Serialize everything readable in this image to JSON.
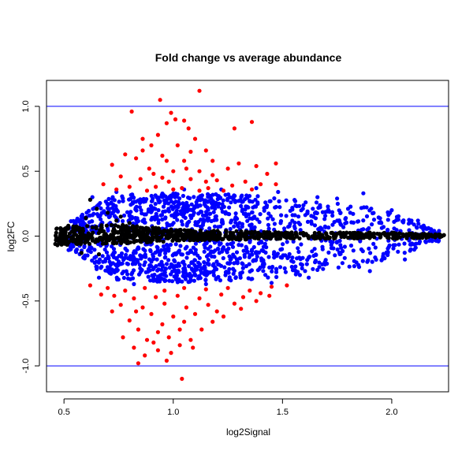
{
  "chart_data": {
    "type": "scatter",
    "title": "Fold change vs average abundance",
    "xlabel": "log2Signal",
    "ylabel": "log2FC",
    "xlim": [
      0.42,
      2.26
    ],
    "ylim": [
      -1.2,
      1.2
    ],
    "x_ticks": [
      0.5,
      1.0,
      1.5,
      2.0
    ],
    "x_tick_labels": [
      "0.5",
      "1.0",
      "1.5",
      "2.0"
    ],
    "y_ticks": [
      -1.0,
      -0.5,
      0.0,
      0.5,
      1.0
    ],
    "y_tick_labels": [
      "-1.0",
      "-0.5",
      "0.0",
      "0.5",
      "1.0"
    ],
    "reference_lines": [
      {
        "axis": "y",
        "value": 1.0,
        "color": "#0000ff"
      },
      {
        "axis": "y",
        "value": -1.0,
        "color": "#0000ff"
      }
    ],
    "grid": false,
    "series_colors": {
      "low": "#000000",
      "mid": "#0000ff",
      "high": "#ff0000"
    },
    "series": [
      {
        "color": "#ff0000",
        "points": [
          [
            0.81,
            0.96
          ],
          [
            0.94,
            1.05
          ],
          [
            1.12,
            1.12
          ],
          [
            0.99,
            0.95
          ],
          [
            1.01,
            0.9
          ],
          [
            1.05,
            0.89
          ],
          [
            0.97,
            0.87
          ],
          [
            1.07,
            0.83
          ],
          [
            1.28,
            0.83
          ],
          [
            1.36,
            0.88
          ],
          [
            0.86,
            0.75
          ],
          [
            0.93,
            0.78
          ],
          [
            1.1,
            0.75
          ],
          [
            0.9,
            0.7
          ],
          [
            1.02,
            0.7
          ],
          [
            1.15,
            0.66
          ],
          [
            0.78,
            0.63
          ],
          [
            0.83,
            0.6
          ],
          [
            0.95,
            0.62
          ],
          [
            1.05,
            0.58
          ],
          [
            1.18,
            0.58
          ],
          [
            1.3,
            0.56
          ],
          [
            0.72,
            0.55
          ],
          [
            0.89,
            0.52
          ],
          [
            1.0,
            0.5
          ],
          [
            1.12,
            0.5
          ],
          [
            1.25,
            0.52
          ],
          [
            1.38,
            0.54
          ],
          [
            1.47,
            0.56
          ],
          [
            1.43,
            0.48
          ],
          [
            0.76,
            0.46
          ],
          [
            0.85,
            0.44
          ],
          [
            0.95,
            0.45
          ],
          [
            1.08,
            0.44
          ],
          [
            1.2,
            0.43
          ],
          [
            1.33,
            0.42
          ],
          [
            1.4,
            0.4
          ],
          [
            0.68,
            0.4
          ],
          [
            0.8,
            0.38
          ],
          [
            0.92,
            0.38
          ],
          [
            1.04,
            0.37
          ],
          [
            1.16,
            0.37
          ],
          [
            1.27,
            0.39
          ],
          [
            1.36,
            0.36
          ],
          [
            1.47,
            0.4
          ],
          [
            0.74,
            0.36
          ],
          [
            0.88,
            0.35
          ],
          [
            1.0,
            0.36
          ],
          [
            1.12,
            0.35
          ],
          [
            1.23,
            0.35
          ],
          [
            0.97,
            0.58
          ],
          [
            1.06,
            0.52
          ],
          [
            0.91,
            0.48
          ],
          [
            1.18,
            0.47
          ],
          [
            0.86,
            0.66
          ],
          [
            1.08,
            0.65
          ],
          [
            1.15,
            0.42
          ],
          [
            0.98,
            0.42
          ],
          [
            0.62,
            -0.38
          ],
          [
            0.7,
            -0.4
          ],
          [
            0.78,
            -0.42
          ],
          [
            0.87,
            -0.4
          ],
          [
            0.96,
            -0.42
          ],
          [
            1.05,
            -0.4
          ],
          [
            1.15,
            -0.41
          ],
          [
            1.25,
            -0.4
          ],
          [
            1.35,
            -0.42
          ],
          [
            1.45,
            -0.39
          ],
          [
            0.73,
            -0.46
          ],
          [
            0.82,
            -0.48
          ],
          [
            0.92,
            -0.47
          ],
          [
            1.02,
            -0.46
          ],
          [
            1.12,
            -0.48
          ],
          [
            1.22,
            -0.45
          ],
          [
            1.32,
            -0.47
          ],
          [
            1.4,
            -0.44
          ],
          [
            0.76,
            -0.53
          ],
          [
            0.86,
            -0.55
          ],
          [
            0.96,
            -0.52
          ],
          [
            1.06,
            -0.55
          ],
          [
            1.16,
            -0.53
          ],
          [
            1.28,
            -0.52
          ],
          [
            0.72,
            -0.58
          ],
          [
            0.9,
            -0.6
          ],
          [
            1.0,
            -0.62
          ],
          [
            1.1,
            -0.6
          ],
          [
            1.2,
            -0.58
          ],
          [
            0.8,
            -0.65
          ],
          [
            0.95,
            -0.68
          ],
          [
            1.05,
            -0.66
          ],
          [
            1.18,
            -0.66
          ],
          [
            0.84,
            -0.72
          ],
          [
            0.93,
            -0.74
          ],
          [
            1.03,
            -0.72
          ],
          [
            1.13,
            -0.72
          ],
          [
            0.77,
            -0.78
          ],
          [
            0.88,
            -0.8
          ],
          [
            0.98,
            -0.78
          ],
          [
            1.08,
            -0.8
          ],
          [
            0.82,
            -0.86
          ],
          [
            0.93,
            -0.88
          ],
          [
            1.03,
            -0.84
          ],
          [
            0.87,
            -0.92
          ],
          [
            0.97,
            -0.96
          ],
          [
            0.84,
            -0.98
          ],
          [
            1.04,
            -1.1
          ],
          [
            0.99,
            -0.9
          ],
          [
            1.09,
            -0.86
          ],
          [
            0.91,
            -0.82
          ],
          [
            0.83,
            -0.58
          ],
          [
            1.23,
            -0.62
          ],
          [
            1.31,
            -0.56
          ],
          [
            1.38,
            -0.5
          ],
          [
            1.44,
            -0.46
          ],
          [
            0.67,
            -0.45
          ],
          [
            1.52,
            -0.38
          ]
        ]
      },
      {
        "color": "#0000ff",
        "band": {
          "x_range": [
            0.52,
            2.22
          ],
          "upper_edge": [
            [
              0.55,
              0.12
            ],
            [
              0.65,
              0.26
            ],
            [
              0.75,
              0.32
            ],
            [
              1.0,
              0.33
            ],
            [
              1.3,
              0.32
            ],
            [
              1.6,
              0.28
            ],
            [
              1.85,
              0.24
            ],
            [
              2.05,
              0.16
            ],
            [
              2.2,
              0.04
            ]
          ],
          "lower_edge": [
            [
              0.55,
              -0.12
            ],
            [
              0.65,
              -0.26
            ],
            [
              0.75,
              -0.34
            ],
            [
              1.0,
              -0.36
            ],
            [
              1.3,
              -0.34
            ],
            [
              1.6,
              -0.3
            ],
            [
              1.85,
              -0.24
            ],
            [
              2.05,
              -0.14
            ],
            [
              2.2,
              -0.04
            ]
          ]
        },
        "outliers": [
          [
            0.63,
            0.3
          ],
          [
            0.74,
            0.34
          ],
          [
            1.05,
            0.36
          ],
          [
            1.22,
            0.36
          ],
          [
            1.38,
            0.37
          ],
          [
            1.48,
            0.34
          ],
          [
            1.66,
            0.3
          ],
          [
            1.87,
            0.33
          ],
          [
            1.75,
            0.29
          ],
          [
            2.0,
            0.2
          ],
          [
            2.12,
            0.12
          ],
          [
            0.66,
            -0.32
          ],
          [
            0.82,
            -0.37
          ],
          [
            1.15,
            -0.37
          ],
          [
            1.45,
            -0.36
          ],
          [
            1.62,
            -0.32
          ],
          [
            1.9,
            -0.27
          ],
          [
            2.06,
            -0.18
          ]
        ]
      },
      {
        "color": "#000000",
        "band": {
          "x_range": [
            0.46,
            2.24
          ],
          "upper_edge": [
            [
              0.46,
              0.06
            ],
            [
              0.7,
              0.1
            ],
            [
              1.0,
              0.05
            ],
            [
              1.5,
              0.03
            ],
            [
              2.0,
              0.03
            ],
            [
              2.24,
              0.01
            ]
          ],
          "lower_edge": [
            [
              0.46,
              -0.07
            ],
            [
              0.7,
              -0.06
            ],
            [
              1.0,
              -0.04
            ],
            [
              1.5,
              -0.02
            ],
            [
              2.0,
              -0.02
            ],
            [
              2.24,
              -0.01
            ]
          ]
        },
        "outliers": [
          [
            0.47,
            -0.07
          ],
          [
            0.52,
            0.08
          ],
          [
            0.58,
            -0.13
          ],
          [
            0.6,
            0.14
          ],
          [
            0.62,
            0.28
          ],
          [
            0.65,
            0.21
          ],
          [
            0.66,
            -0.14
          ],
          [
            0.7,
            0.18
          ],
          [
            0.74,
            0.12
          ],
          [
            0.76,
            0.15
          ],
          [
            0.8,
            0.1
          ],
          [
            2.08,
            0.02
          ],
          [
            2.15,
            0.01
          ],
          [
            2.2,
            0.0
          ],
          [
            2.23,
            0.0
          ],
          [
            2.02,
            0.02
          ]
        ]
      }
    ]
  }
}
